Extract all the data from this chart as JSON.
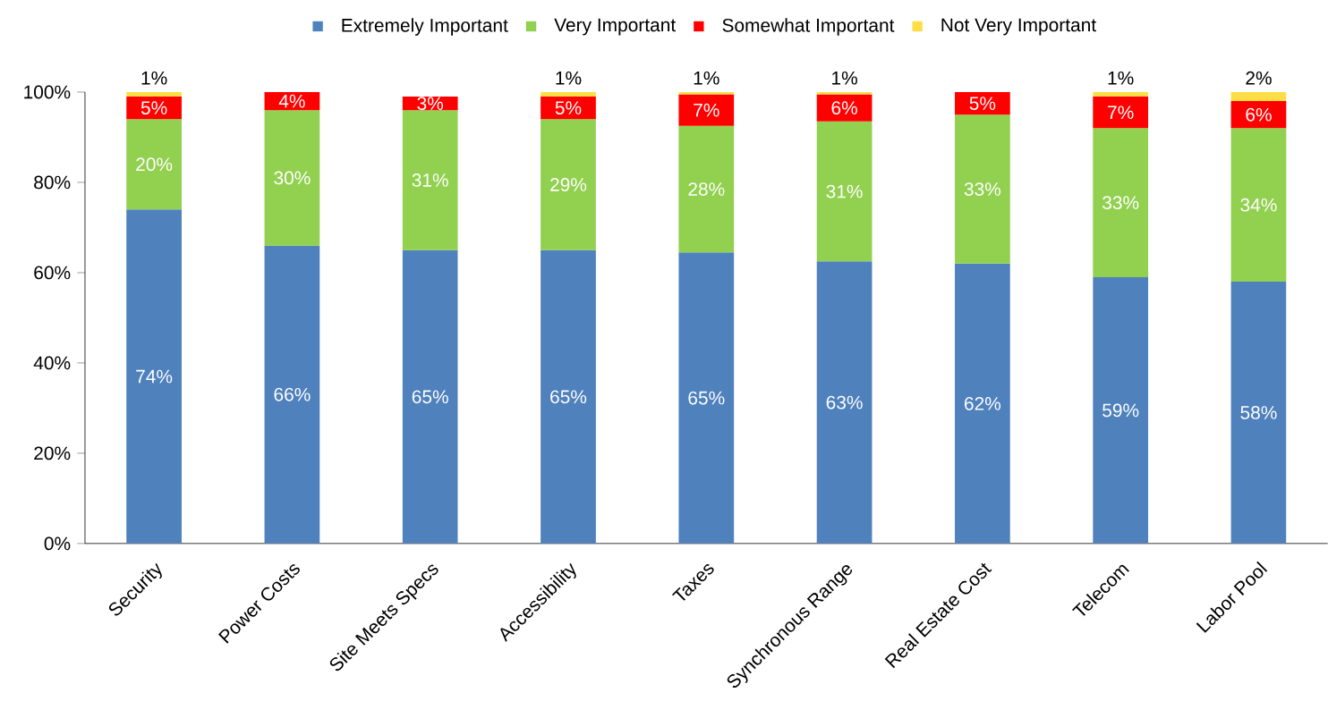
{
  "chart_data": {
    "type": "bar",
    "stacked": true,
    "categories": [
      "Security",
      "Power Costs",
      "Site Meets Specs",
      "Accessibility",
      "Taxes",
      "Synchronous Range",
      "Real Estate Cost",
      "Telecom",
      "Labor Pool"
    ],
    "series": [
      {
        "name": "Extremely Important",
        "color": "#4f81bd",
        "values": [
          74,
          66,
          65,
          65,
          64.5,
          62.5,
          62,
          59,
          58
        ],
        "value_labels": [
          "74%",
          "66%",
          "65%",
          "65%",
          "65%",
          "63%",
          "62%",
          "59%",
          "58%"
        ]
      },
      {
        "name": "Very Important",
        "color": "#92d050",
        "values": [
          20,
          30,
          31,
          29,
          28,
          31,
          33,
          33,
          34
        ],
        "value_labels": [
          "20%",
          "30%",
          "31%",
          "29%",
          "28%",
          "31%",
          "33%",
          "33%",
          "34%"
        ]
      },
      {
        "name": "Somewhat Important",
        "color": "#ff0000",
        "values": [
          5,
          4,
          3,
          5,
          7,
          6,
          5,
          7,
          6
        ],
        "value_labels": [
          "5%",
          "4%",
          "3%",
          "5%",
          "7%",
          "6%",
          "5%",
          "7%",
          "6%"
        ]
      },
      {
        "name": "Not Very Important",
        "color": "#ffdd44",
        "values": [
          1,
          null,
          null,
          1,
          0.5,
          0.5,
          null,
          1,
          2
        ],
        "value_labels": [
          "1%",
          null,
          null,
          "1%",
          "1%",
          "1%",
          null,
          "1%",
          "2%"
        ]
      }
    ],
    "ylim": [
      0,
      100
    ],
    "yticks": [
      {
        "value": 0,
        "label": "0%"
      },
      {
        "value": 20,
        "label": "20%"
      },
      {
        "value": 40,
        "label": "40%"
      },
      {
        "value": 60,
        "label": "60%"
      },
      {
        "value": 80,
        "label": "80%"
      },
      {
        "value": 100,
        "label": "100%"
      }
    ],
    "legend": "top",
    "grid": false
  }
}
